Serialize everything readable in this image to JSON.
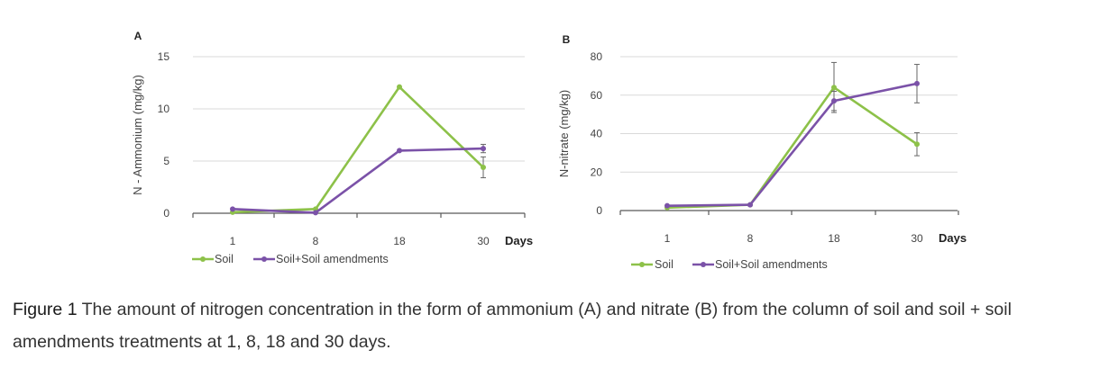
{
  "chart_data": [
    {
      "type": "line",
      "panel_label": "A",
      "ylabel": "N - Ammonium (mg/kg)",
      "xlabel": "Days",
      "categories": [
        "1",
        "8",
        "18",
        "30"
      ],
      "ylim": [
        0,
        15
      ],
      "yticks": [
        0,
        5,
        10,
        15
      ],
      "series": [
        {
          "name": "Soil",
          "color": "#8dc149",
          "values": [
            0.1,
            0.4,
            12.1,
            4.4
          ],
          "errors": [
            0,
            0,
            0,
            1.0
          ]
        },
        {
          "name": "Soil+Soil amendments",
          "color": "#7b52a8",
          "values": [
            0.4,
            0.05,
            6.0,
            6.2
          ],
          "errors": [
            0,
            0,
            0,
            0.4
          ]
        }
      ]
    },
    {
      "type": "line",
      "panel_label": "B",
      "ylabel": "N-nitrate (mg/kg)",
      "xlabel": "Days",
      "categories": [
        "1",
        "8",
        "18",
        "30"
      ],
      "ylim": [
        0,
        80
      ],
      "yticks": [
        0,
        20,
        40,
        60,
        80
      ],
      "series": [
        {
          "name": "Soil",
          "color": "#8dc149",
          "values": [
            1.5,
            3.0,
            64.0,
            34.5
          ],
          "errors": [
            0,
            0,
            13,
            6
          ]
        },
        {
          "name": "Soil+Soil amendments",
          "color": "#7b52a8",
          "values": [
            2.5,
            3.0,
            57.0,
            66.0
          ],
          "errors": [
            0,
            0,
            5,
            10
          ]
        }
      ]
    }
  ],
  "caption": {
    "figure_label": "Figure 1",
    "text": "The amount of nitrogen concentration in the form of ammonium (A) and nitrate (B) from the column of soil and soil + soil amendments treatments at 1, 8, 18 and 30 days."
  }
}
